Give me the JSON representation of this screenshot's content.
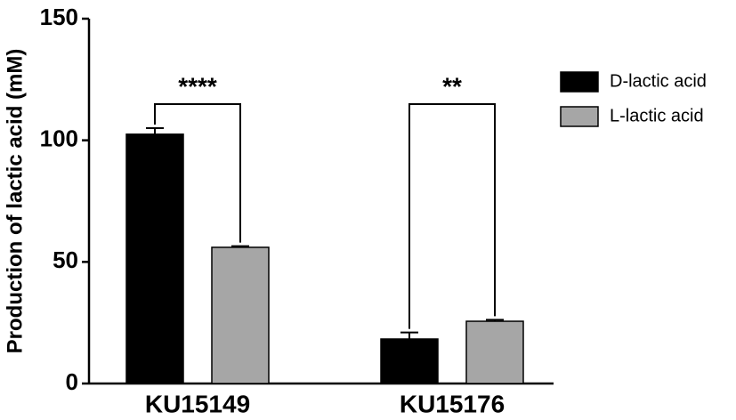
{
  "chart_data": {
    "type": "bar",
    "y_label": "Production of lactic acid (mM)",
    "categories": [
      "KU15149",
      "KU15176"
    ],
    "series": [
      {
        "name": "D-lactic acid",
        "color": "#000000",
        "values": [
          102.5,
          18.3
        ],
        "errors": [
          2.5,
          2.7
        ]
      },
      {
        "name": "L-lactic acid",
        "color": "#a6a6a6",
        "values": [
          56,
          25.6
        ],
        "errors": [
          0.5,
          0.6
        ]
      }
    ],
    "annotations": [
      "****",
      "**"
    ],
    "ylim": [
      0,
      150
    ],
    "yticks": [
      0,
      50,
      100,
      150
    ]
  }
}
